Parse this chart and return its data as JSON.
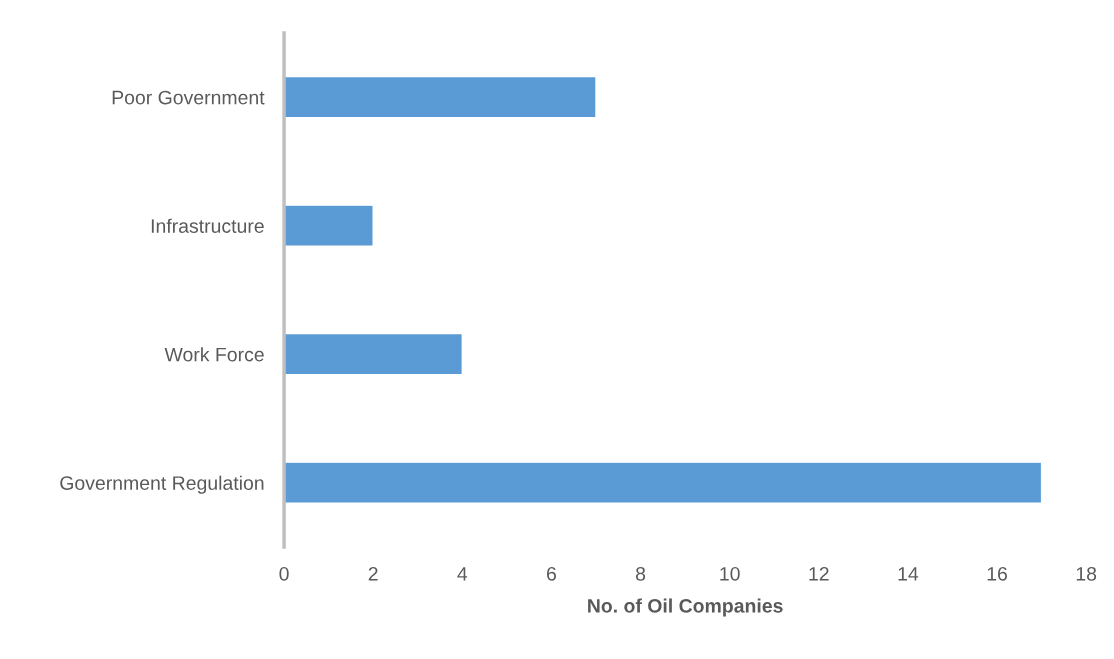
{
  "chart_data": {
    "type": "bar",
    "orientation": "horizontal",
    "xlabel": "No. of Oil Companies",
    "categories": [
      "Poor Government",
      "Infrastructure",
      "Work Force",
      "Government Regulation"
    ],
    "values": [
      7,
      2,
      4,
      17
    ],
    "color": "#5b9bd5",
    "xlim": [
      0,
      18
    ],
    "xticks": [
      0,
      2,
      4,
      6,
      8,
      10,
      12,
      14,
      16,
      18
    ],
    "grid": false,
    "legend": false
  }
}
